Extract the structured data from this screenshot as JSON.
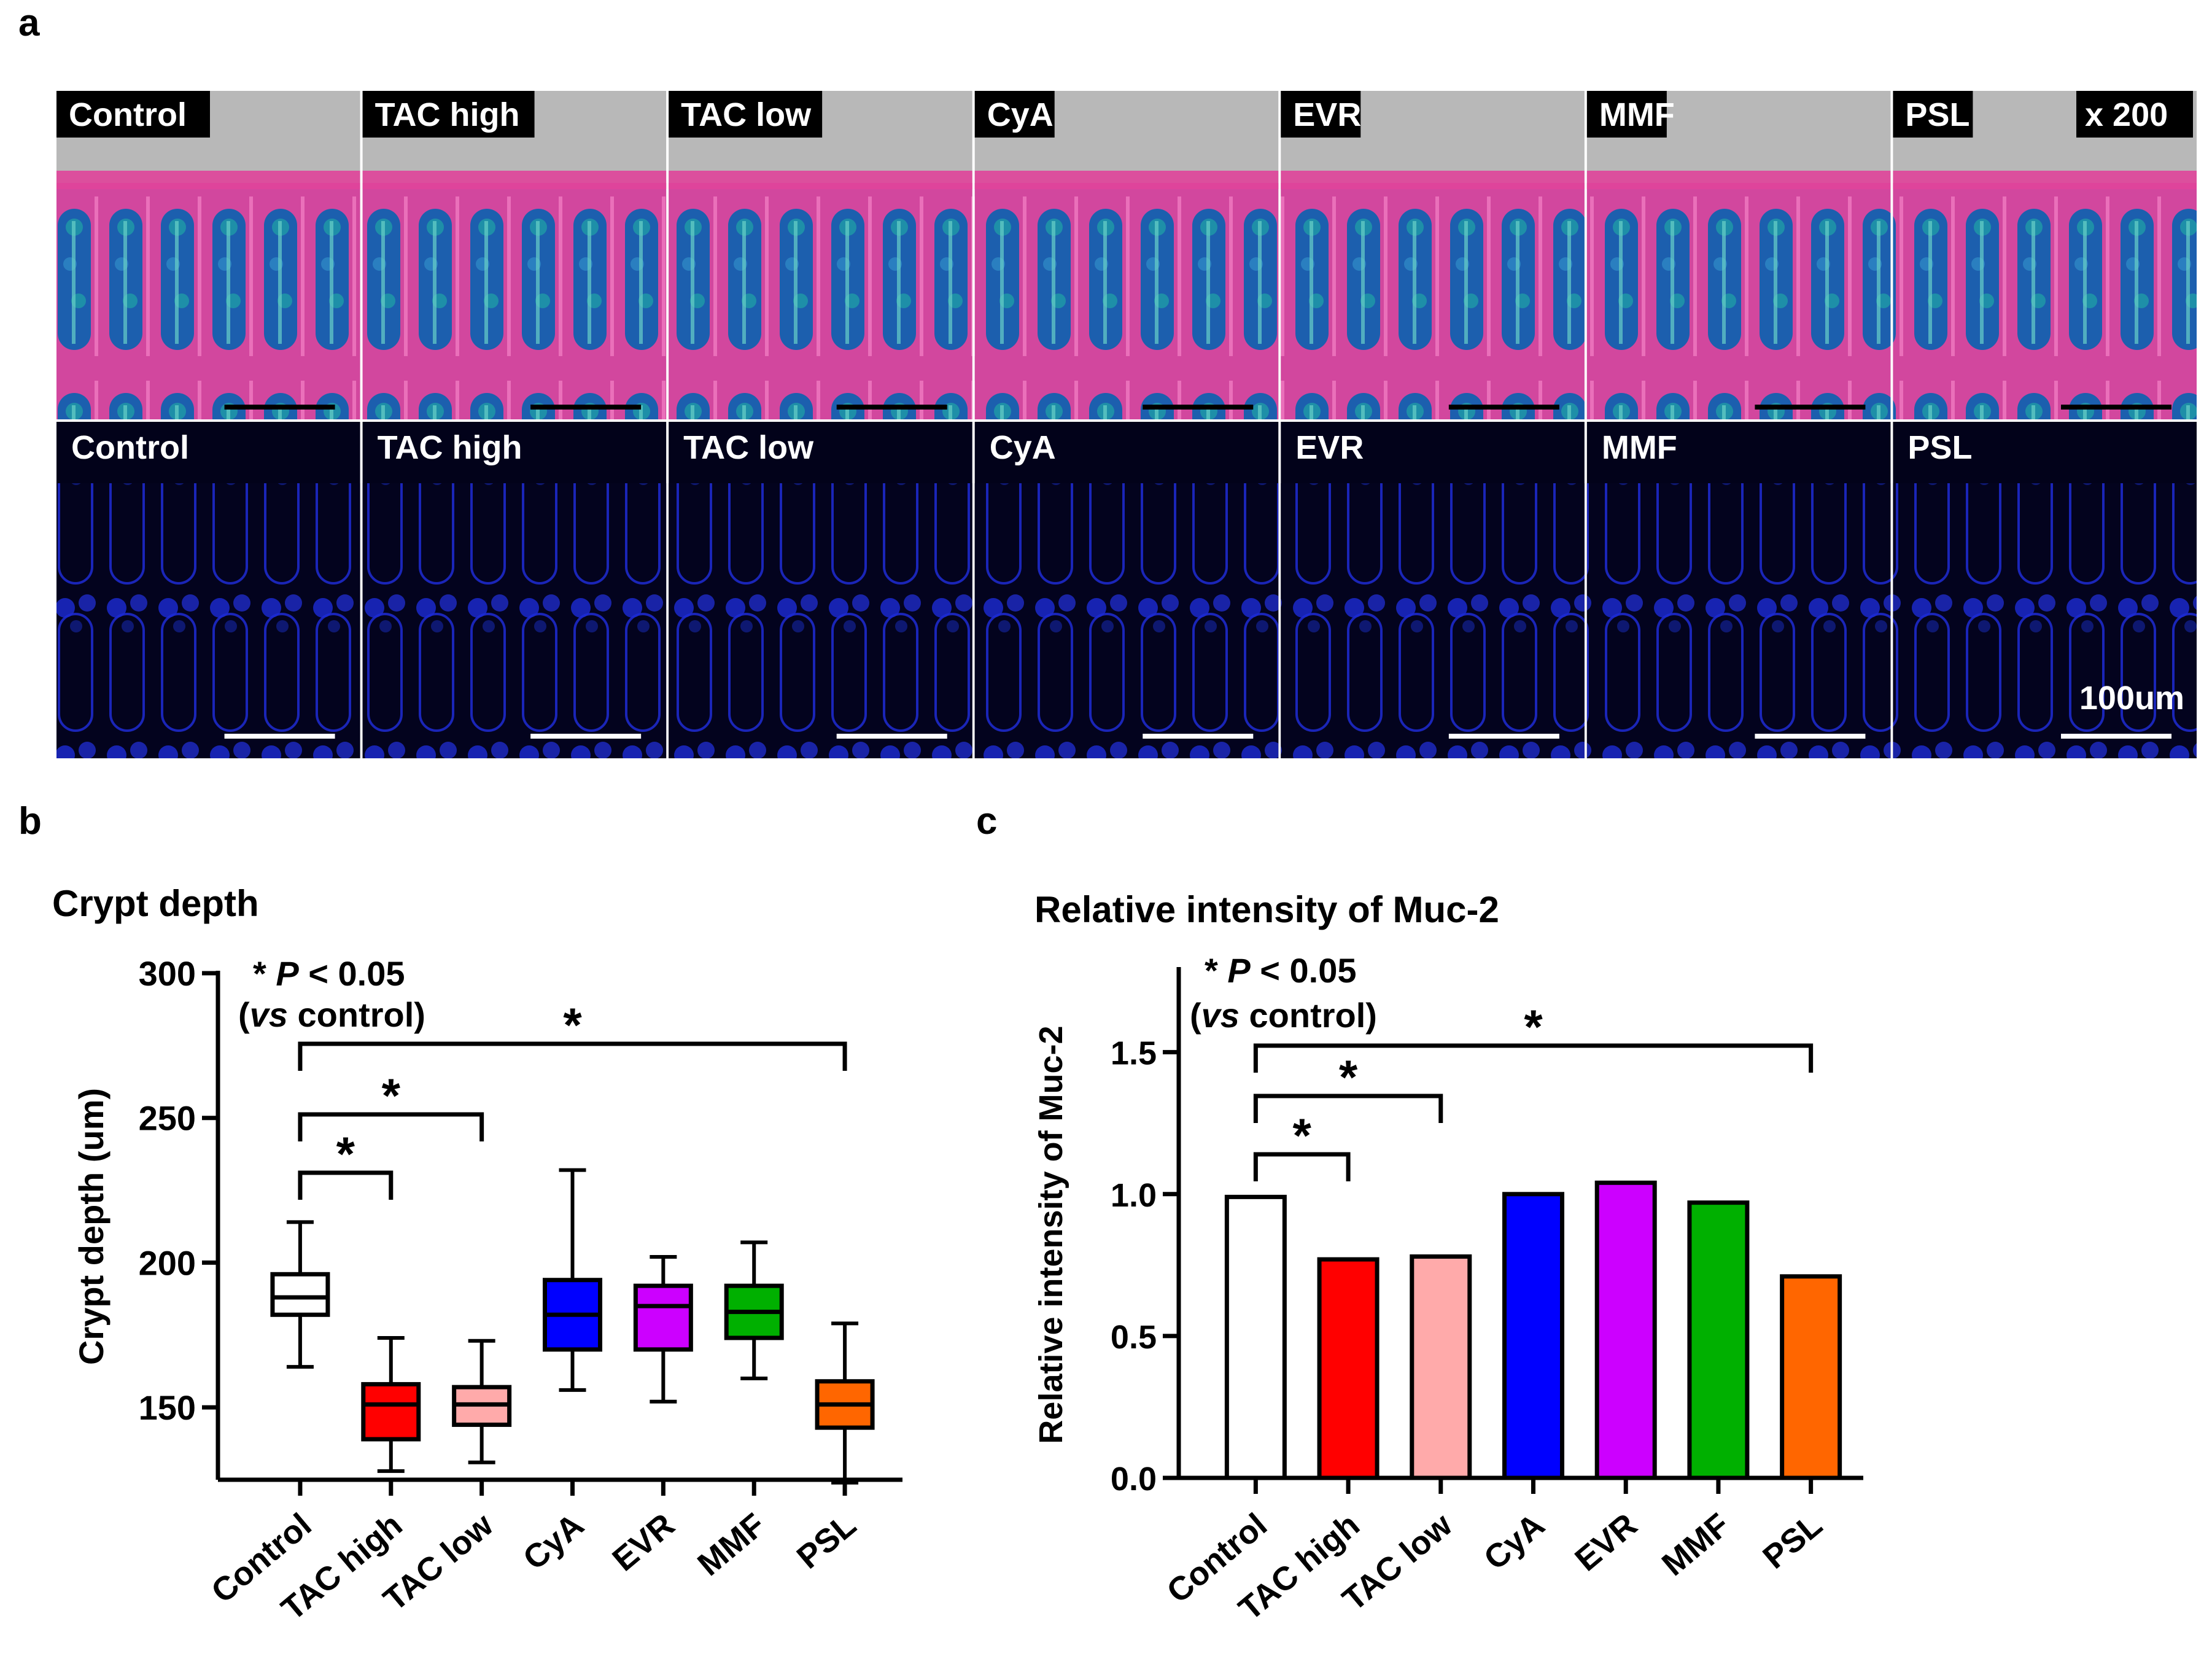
{
  "panel_a": {
    "letter": "a",
    "magnification": "x 200",
    "scale_bar_label": "100um",
    "colors": {
      "tissue_bg": "#b8b8b8",
      "pink": "#e0449a",
      "teal": "#1e8fa8",
      "blue": "#1a4fa8",
      "fluor": "#1c2bd6",
      "fluor_bg": "#02021a"
    },
    "panels": [
      {
        "top_label": "Control",
        "bottom_label": "Control"
      },
      {
        "top_label": "TAC high",
        "bottom_label": "TAC high"
      },
      {
        "top_label": "TAC low",
        "bottom_label": "TAC low"
      },
      {
        "top_label": "CyA",
        "bottom_label": "CyA"
      },
      {
        "top_label": "EVR",
        "bottom_label": "EVR"
      },
      {
        "top_label": "MMF",
        "bottom_label": "MMF"
      },
      {
        "top_label": "PSL",
        "bottom_label": "PSL"
      }
    ]
  },
  "chart_data": [
    {
      "panel": "b",
      "type": "box",
      "title": "Crypt depth",
      "xlabel": "",
      "ylabel": "Crypt depth (um)",
      "ylim": [
        125,
        300
      ],
      "yticks": [
        150,
        200,
        250,
        300
      ],
      "categories": [
        "Control",
        "TAC high",
        "TAC low",
        "CyA",
        "EVR",
        "MMF",
        "PSL"
      ],
      "colors": [
        "#ffffff",
        "#ff0000",
        "#ffaaaa",
        "#0000ff",
        "#cc00ff",
        "#00b000",
        "#ff6600"
      ],
      "boxes": [
        {
          "min": 164,
          "q1": 182,
          "median": 188,
          "q3": 196,
          "max": 214
        },
        {
          "min": 128,
          "q1": 139,
          "median": 151,
          "q3": 158,
          "max": 174
        },
        {
          "min": 131,
          "q1": 144,
          "median": 151,
          "q3": 157,
          "max": 173
        },
        {
          "min": 156,
          "q1": 170,
          "median": 182,
          "q3": 194,
          "max": 232
        },
        {
          "min": 152,
          "q1": 170,
          "median": 185,
          "q3": 192,
          "max": 202
        },
        {
          "min": 160,
          "q1": 174,
          "median": 183,
          "q3": 192,
          "max": 207
        },
        {
          "min": 124,
          "q1": 143,
          "median": 151,
          "q3": 159,
          "max": 179
        }
      ],
      "significance_note": {
        "star": "*",
        "p": "P",
        "rest": " < 0.05",
        "vs": "vs",
        "control": " control)"
      },
      "significance": [
        {
          "from": "Control",
          "to": "TAC high",
          "label": "*"
        },
        {
          "from": "Control",
          "to": "TAC low",
          "label": "*"
        },
        {
          "from": "Control",
          "to": "PSL",
          "label": "*"
        }
      ]
    },
    {
      "panel": "c",
      "type": "bar",
      "title": "Relative intensity of Muc-2",
      "xlabel": "",
      "ylabel": "Relative intensity of Muc-2",
      "ylim": [
        0,
        1.8
      ],
      "yticks": [
        "0.0",
        "0.5",
        "1.0",
        "1.5"
      ],
      "categories": [
        "Control",
        "TAC high",
        "TAC low",
        "CyA",
        "EVR",
        "MMF",
        "PSL"
      ],
      "colors": [
        "#ffffff",
        "#ff0000",
        "#ffaaaa",
        "#0000ff",
        "#cc00ff",
        "#00b000",
        "#ff6600"
      ],
      "values": [
        0.99,
        0.77,
        0.78,
        1.0,
        1.04,
        0.97,
        0.71
      ],
      "significance_note": {
        "star": "*",
        "p": "P",
        "rest": " < 0.05",
        "vs": "vs",
        "control": " control)"
      },
      "significance": [
        {
          "from": "Control",
          "to": "TAC high",
          "label": "*"
        },
        {
          "from": "Control",
          "to": "TAC low",
          "label": "*"
        },
        {
          "from": "Control",
          "to": "PSL",
          "label": "*"
        }
      ]
    }
  ]
}
